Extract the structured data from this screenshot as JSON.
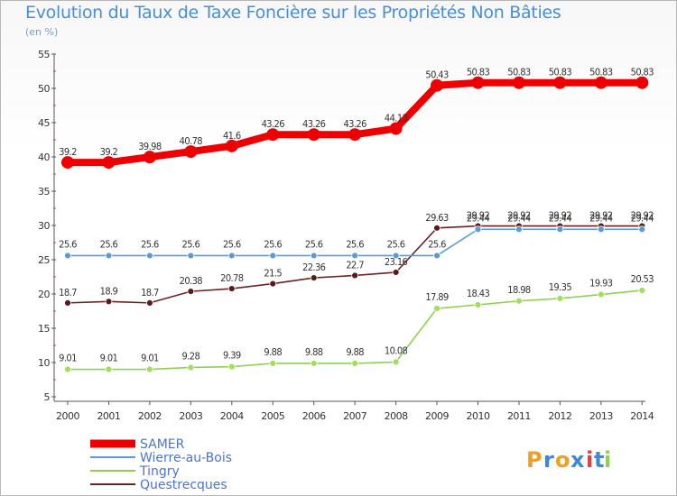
{
  "chart_data": {
    "type": "line",
    "title": "Evolution du Taux de Taxe Foncière sur les Propriétés Non Bâties",
    "ylabel": "(en %)",
    "xlabel": "",
    "ylim": [
      5,
      55
    ],
    "yticks": [
      5,
      10,
      15,
      20,
      25,
      30,
      35,
      40,
      45,
      50,
      55
    ],
    "categories": [
      "2000",
      "2001",
      "2002",
      "2003",
      "2004",
      "2005",
      "2006",
      "2007",
      "2008",
      "2009",
      "2010",
      "2011",
      "2012",
      "2013",
      "2014"
    ],
    "series": [
      {
        "name": "SAMER",
        "color": "#ee0000",
        "labels": [
          "39.2",
          "39.2",
          "39.98",
          "40.78",
          "41.6",
          "43.26",
          "43.26",
          "43.26",
          "44.13",
          "50.43",
          "50.83",
          "50.83",
          "50.83",
          "50.83",
          "50.83"
        ],
        "values": [
          39.2,
          39.2,
          39.98,
          40.78,
          41.6,
          43.26,
          43.26,
          43.26,
          44.13,
          50.43,
          50.83,
          50.83,
          50.83,
          50.83,
          50.83
        ]
      },
      {
        "name": "Wierre-au-Bois",
        "color": "#5b9bd5",
        "labels": [
          "25.6",
          "25.6",
          "25.6",
          "25.6",
          "25.6",
          "25.6",
          "25.6",
          "25.6",
          "25.6",
          "25.6",
          "29.44",
          "29.44",
          "29.44",
          "29.44",
          "29.44"
        ],
        "values": [
          25.6,
          25.6,
          25.6,
          25.6,
          25.6,
          25.6,
          25.6,
          25.6,
          25.6,
          25.6,
          29.44,
          29.44,
          29.44,
          29.44,
          29.44
        ]
      },
      {
        "name": "Tingry",
        "color": "#8fd14f",
        "labels": [
          "9.01",
          "9.01",
          "9.01",
          "9.28",
          "9.39",
          "9.88",
          "9.88",
          "9.88",
          "10.08",
          "17.89",
          "18.43",
          "18.98",
          "19.35",
          "19.93",
          "20.53"
        ],
        "values": [
          9.01,
          9.01,
          9.01,
          9.28,
          9.39,
          9.88,
          9.88,
          9.88,
          10.08,
          17.89,
          18.43,
          18.98,
          19.35,
          19.93,
          20.53
        ]
      },
      {
        "name": "Questrecques",
        "color": "#6b2222",
        "labels": [
          "18.7",
          "18.9",
          "18.7",
          "20.38",
          "20.78",
          "21.5",
          "22.36",
          "22.7",
          "23.16",
          "29.63",
          "29.92",
          "29.92",
          "29.92",
          "29.92",
          "29.92"
        ],
        "values": [
          18.7,
          18.9,
          18.7,
          20.38,
          20.78,
          21.5,
          22.36,
          22.7,
          23.16,
          29.63,
          29.92,
          29.92,
          29.92,
          29.92,
          29.92
        ]
      }
    ],
    "legend_position": "bottom-left",
    "grid": false
  },
  "brand": {
    "letters": [
      "P",
      "r",
      "o",
      "x",
      "i",
      "t",
      "i"
    ],
    "colors": [
      "#f0a020",
      "#3a8ad8",
      "#f0a020",
      "#3a8ad8",
      "#e84040",
      "#3a8ad8",
      "#8fd14f"
    ]
  }
}
